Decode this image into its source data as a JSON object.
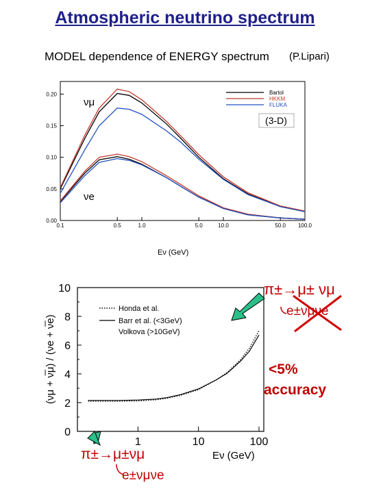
{
  "title": "Atmospheric neutrino spectrum",
  "colors": {
    "title": "#1f1f8a",
    "red": "#c00000",
    "arrow": "#2bbf8a",
    "cross": "#d00000"
  },
  "chart_data": [
    {
      "type": "line",
      "title": "MODEL dependence of ENERGY spectrum",
      "author_note": "(P.Lipari)",
      "tag": "(3-D)",
      "xlabel": "Eν (GeV)",
      "xscale": "log",
      "xlim": [
        0.1,
        100.0
      ],
      "ylim": [
        0.0,
        0.22
      ],
      "xticks": [
        "0.1",
        "0.5",
        "1.0",
        "5.0",
        "10.0",
        "50.0",
        "100.0"
      ],
      "yticks": [
        "0.00",
        "0.05",
        "0.10",
        "0.15",
        "0.20"
      ],
      "curve_labels": [
        "νμ",
        "νe"
      ],
      "x": [
        0.1,
        0.2,
        0.3,
        0.5,
        0.7,
        1.0,
        2.0,
        3.0,
        5.0,
        10.0,
        20.0,
        50.0,
        100.0
      ],
      "series": [
        {
          "name": "Bartol",
          "color": "#000000",
          "group": "numu",
          "values": [
            0.05,
            0.13,
            0.172,
            0.201,
            0.198,
            0.186,
            0.153,
            0.13,
            0.1,
            0.066,
            0.042,
            0.022,
            0.014
          ]
        },
        {
          "name": "HKKM",
          "color": "#c0392b",
          "group": "numu",
          "values": [
            0.052,
            0.135,
            0.178,
            0.208,
            0.204,
            0.191,
            0.157,
            0.134,
            0.104,
            0.069,
            0.044,
            0.023,
            0.015
          ]
        },
        {
          "name": "FLUKA",
          "color": "#1f4fbf",
          "group": "numu",
          "values": [
            0.043,
            0.112,
            0.15,
            0.178,
            0.176,
            0.168,
            0.142,
            0.124,
            0.097,
            0.065,
            0.041,
            0.022,
            0.014
          ]
        },
        {
          "name": "Bartol",
          "color": "#000000",
          "group": "nue",
          "values": [
            0.03,
            0.075,
            0.096,
            0.101,
            0.097,
            0.089,
            0.068,
            0.054,
            0.037,
            0.019,
            0.009,
            0.004,
            0.002
          ]
        },
        {
          "name": "HKKM",
          "color": "#c0392b",
          "group": "nue",
          "values": [
            0.031,
            0.078,
            0.1,
            0.105,
            0.101,
            0.093,
            0.071,
            0.057,
            0.039,
            0.02,
            0.01,
            0.004,
            0.002
          ]
        },
        {
          "name": "FLUKA",
          "color": "#1f4fbf",
          "group": "nue",
          "values": [
            0.028,
            0.071,
            0.092,
            0.098,
            0.095,
            0.088,
            0.068,
            0.054,
            0.037,
            0.019,
            0.009,
            0.004,
            0.002
          ]
        }
      ]
    },
    {
      "type": "line",
      "xlabel": "Eν (GeV)",
      "ylabel": "(νμ + ν̅μ) / (νe + ν̅e)",
      "xscale": "log",
      "xlim": [
        0.1,
        120
      ],
      "ylim": [
        0,
        10
      ],
      "xticks": [
        "1",
        "10",
        "100"
      ],
      "yticks": [
        "0",
        "2",
        "4",
        "6",
        "8",
        "10"
      ],
      "legend": [
        "Honda et al.",
        "Barr et al. (<3GeV)",
        "Volkova (>10GeV)"
      ],
      "x": [
        0.15,
        0.3,
        0.5,
        1.0,
        2.0,
        3.0,
        5.0,
        10.0,
        20.0,
        30.0,
        50.0,
        70.0,
        100.0
      ],
      "series": [
        {
          "name": "Honda et al.",
          "style": "dotted",
          "values": [
            2.1,
            2.1,
            2.1,
            2.12,
            2.2,
            2.3,
            2.5,
            2.9,
            3.6,
            4.1,
            5.0,
            5.8,
            7.0
          ]
        },
        {
          "name": "Barr et al. (<3GeV) / Volkova (>10GeV)",
          "style": "solid",
          "values": [
            2.15,
            2.15,
            2.15,
            2.18,
            2.25,
            2.35,
            2.55,
            2.95,
            3.6,
            4.05,
            4.9,
            5.6,
            6.7
          ]
        }
      ]
    }
  ],
  "annotations": {
    "decay_hi_1": "π±→μ± νμ",
    "decay_hi_2": "e±νμνe",
    "accuracy_1": "<5%",
    "accuracy_2": "accuracy",
    "decay_lo_1": "π±→μ±νμ",
    "decay_lo_2": "e±νμνe"
  }
}
